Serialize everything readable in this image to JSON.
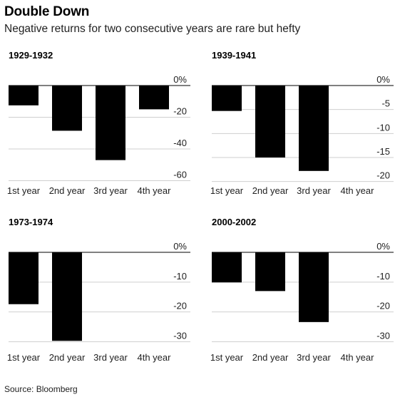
{
  "title": "Double Down",
  "subtitle": "Negative returns for two consecutive years are rare but hefty",
  "source": "Source: Bloomberg",
  "chart_data": [
    {
      "type": "bar",
      "title": "1929-1932",
      "categories": [
        "1st year",
        "2nd year",
        "3rd year",
        "4th year"
      ],
      "values": [
        -12.5,
        -28.5,
        -47,
        -15
      ],
      "ylim": [
        -62,
        0
      ],
      "yticks": [
        0,
        -20,
        -40,
        -60
      ],
      "yticklabels": [
        "0%",
        "-20",
        "-40",
        "-60"
      ],
      "grid": true,
      "bar_color": "#000000"
    },
    {
      "type": "bar",
      "title": "1939-1941",
      "categories": [
        "1st year",
        "2nd year",
        "3rd year",
        "4th year"
      ],
      "values": [
        -5.3,
        -15,
        -17.8,
        null
      ],
      "ylim": [
        -20.5,
        0
      ],
      "yticks": [
        0,
        -5,
        -10,
        -15,
        -20
      ],
      "yticklabels": [
        "0%",
        "-5",
        "-10",
        "-15",
        "-20"
      ],
      "grid": true,
      "bar_color": "#000000"
    },
    {
      "type": "bar",
      "title": "1973-1974",
      "categories": [
        "1st year",
        "2nd year",
        "3rd year",
        "4th year"
      ],
      "values": [
        -17.4,
        -29.7,
        null,
        null
      ],
      "ylim": [
        -33,
        0
      ],
      "yticks": [
        0,
        -10,
        -20,
        -30
      ],
      "yticklabels": [
        "0%",
        "-10",
        "-20",
        "-30"
      ],
      "grid": true,
      "bar_color": "#000000"
    },
    {
      "type": "bar",
      "title": "2000-2002",
      "categories": [
        "1st year",
        "2nd year",
        "3rd year",
        "4th year"
      ],
      "values": [
        -10.1,
        -13,
        -23.4,
        null
      ],
      "ylim": [
        -33,
        0
      ],
      "yticks": [
        0,
        -10,
        -20,
        -30
      ],
      "yticklabels": [
        "0%",
        "-10",
        "-20",
        "-30"
      ],
      "grid": true,
      "bar_color": "#000000"
    }
  ]
}
